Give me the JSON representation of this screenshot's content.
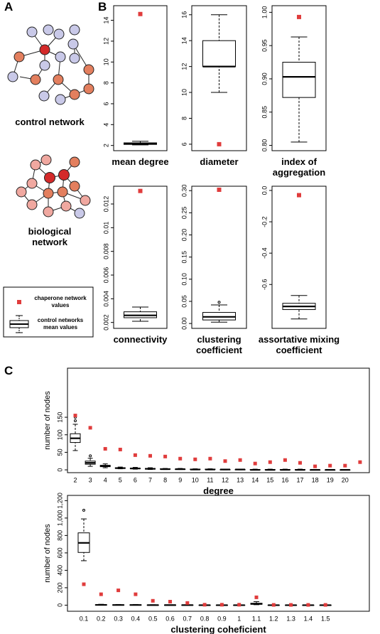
{
  "panel_labels": [
    "A",
    "B",
    "C"
  ],
  "network_labels": [
    "control network",
    "biological network"
  ],
  "legend": {
    "points": "chaperone network values",
    "boxes": "control networks mean values"
  },
  "chart_data": [
    {
      "type": "boxplot",
      "title": "mean degree",
      "ylim": [
        1.5,
        15.4
      ],
      "yticks": [
        2,
        4,
        6,
        8,
        10,
        12,
        14
      ],
      "min": [
        2.05
      ],
      "q1": [
        2.1
      ],
      "median": [
        2.15
      ],
      "q3": [
        2.25
      ],
      "max": [
        2.4
      ],
      "outliers": [
        []
      ],
      "points": [
        14.6
      ],
      "box_color": "#000000",
      "point_color": "#e03c3c"
    },
    {
      "type": "boxplot",
      "title": "diameter",
      "ylim": [
        5.5,
        16.7
      ],
      "yticks": [
        6,
        8,
        10,
        12,
        14,
        16
      ],
      "min": [
        10
      ],
      "q1": [
        12
      ],
      "median": [
        12
      ],
      "q3": [
        14
      ],
      "max": [
        16
      ],
      "outliers": [
        []
      ],
      "points": [
        6
      ],
      "box_color": "#000000",
      "point_color": "#e03c3c"
    },
    {
      "type": "boxplot",
      "title": "index of aggregation",
      "ylim": [
        0.792,
        1.01
      ],
      "yticks": [
        {
          "value": 0.8,
          "label": "0.80"
        },
        0.85,
        {
          "value": 0.9,
          "label": "0.90"
        },
        0.95,
        {
          "value": 1,
          "label": "1.00"
        }
      ],
      "min": [
        0.805
      ],
      "q1": [
        0.872
      ],
      "median": [
        0.903
      ],
      "q3": [
        0.925
      ],
      "max": [
        0.963
      ],
      "outliers": [
        []
      ],
      "points": [
        0.993
      ],
      "box_color": "#000000",
      "point_color": "#e03c3c"
    },
    {
      "type": "boxplot",
      "title": "connectivity",
      "ylim": [
        0.0015,
        0.0135
      ],
      "yticks": [
        0.002,
        0.004,
        0.006,
        0.008,
        0.01,
        0.012
      ],
      "min": [
        0.0021
      ],
      "q1": [
        0.0024
      ],
      "median": [
        0.0026
      ],
      "q3": [
        0.0029
      ],
      "max": [
        0.0033
      ],
      "outliers": [
        []
      ],
      "points": [
        0.0131
      ],
      "box_color": "#000000",
      "point_color": "#e03c3c"
    },
    {
      "type": "boxplot",
      "title": "clustering coefficient",
      "ylim": [
        -0.011,
        0.31
      ],
      "yticks": [
        {
          "value": 0,
          "label": "0.00"
        },
        0.05,
        {
          "value": 0.1,
          "label": "0.10"
        },
        0.15,
        {
          "value": 0.2,
          "label": "0.20"
        },
        0.25,
        {
          "value": 0.3,
          "label": "0.30"
        }
      ],
      "min": [
        0.003
      ],
      "q1": [
        0.008
      ],
      "median": [
        0.015
      ],
      "q3": [
        0.025
      ],
      "max": [
        0.042
      ],
      "outliers": [
        [
          0.048
        ]
      ],
      "points": [
        0.302
      ],
      "box_color": "#000000",
      "point_color": "#e03c3c"
    },
    {
      "type": "boxplot",
      "title": "assortative mixing coefficient",
      "ylim": [
        -0.88,
        0.027
      ],
      "yticks": [
        {
          "value": 0,
          "label": "0.0"
        },
        -0.2,
        -0.4,
        -0.6
      ],
      "min": [
        -0.82
      ],
      "q1": [
        -0.76
      ],
      "median": [
        -0.74
      ],
      "q3": [
        -0.72
      ],
      "max": [
        -0.67
      ],
      "outliers": [
        []
      ],
      "points": [
        -0.03
      ],
      "box_color": "#000000",
      "point_color": "#e03c3c"
    },
    {
      "type": "boxplot",
      "xlabel": "degree",
      "ylabel": "number of nodes",
      "ylim": [
        -8,
        290
      ],
      "yticks": [
        0,
        50,
        100,
        150
      ],
      "categories": [
        "2",
        "3",
        "4",
        "5",
        "6",
        "7",
        "8",
        "9",
        "10",
        "11",
        "12",
        "13",
        "14",
        "15",
        "16",
        "17",
        "18",
        "19",
        "20",
        null
      ],
      "min": [
        55,
        10,
        6,
        3,
        2,
        1,
        1,
        1,
        0,
        0,
        0,
        0,
        0,
        0,
        0,
        0,
        0,
        0,
        0,
        null
      ],
      "q1": [
        78,
        16,
        9,
        4,
        3,
        2,
        2,
        1,
        1,
        1,
        0,
        0,
        0,
        0,
        0,
        0,
        0,
        0,
        0,
        null
      ],
      "median": [
        90,
        20,
        11,
        5,
        4,
        3,
        2,
        2,
        1,
        1,
        1,
        1,
        0,
        0,
        0,
        0,
        0,
        0,
        0,
        null
      ],
      "q3": [
        103,
        25,
        13,
        6,
        5,
        4,
        3,
        2,
        2,
        2,
        1,
        1,
        1,
        1,
        1,
        1,
        0,
        0,
        0,
        null
      ],
      "max": [
        130,
        33,
        17,
        8,
        7,
        6,
        4,
        4,
        3,
        3,
        2,
        2,
        2,
        2,
        2,
        2,
        1,
        1,
        1,
        null
      ],
      "outliers": [
        [
          140,
          150
        ],
        [
          40
        ],
        [],
        [],
        [],
        [],
        [],
        [],
        [],
        [],
        [],
        [],
        [],
        [],
        [],
        [],
        [],
        [],
        [],
        []
      ],
      "points": [
        155,
        120,
        60,
        58,
        42,
        40,
        38,
        32,
        30,
        32,
        25,
        28,
        18,
        22,
        28,
        20,
        10,
        12,
        12,
        22
      ],
      "box_color": "#000000",
      "point_color": "#e03c3c"
    },
    {
      "type": "boxplot",
      "xlabel": "clustering coheficient",
      "ylabel": "number of nodes",
      "ylim": [
        -70,
        1260
      ],
      "yticks": [
        0,
        200,
        400,
        600,
        800,
        {
          "value": 1000,
          "label": "1,000"
        },
        {
          "value": 1200,
          "label": "1,200"
        }
      ],
      "categories": [
        "0.1",
        "0.2",
        "0.3",
        "0.4",
        "0.5",
        "0.6",
        "0.7",
        "0.8",
        "0.9",
        "1",
        "1.1",
        "1.2",
        "1.3",
        "1.4",
        "1.5"
      ],
      "min": [
        510,
        0,
        0,
        0,
        0,
        0,
        0,
        0,
        0,
        0,
        5,
        0,
        0,
        0,
        0
      ],
      "q1": [
        605,
        1,
        1,
        1,
        0,
        0,
        0,
        0,
        0,
        0,
        10,
        0,
        0,
        0,
        0
      ],
      "median": [
        715,
        3,
        2,
        2,
        1,
        1,
        1,
        0,
        0,
        0,
        15,
        0,
        0,
        0,
        0
      ],
      "q3": [
        830,
        5,
        4,
        4,
        2,
        2,
        2,
        1,
        1,
        1,
        22,
        1,
        1,
        1,
        1
      ],
      "max": [
        990,
        10,
        8,
        8,
        5,
        4,
        4,
        3,
        2,
        2,
        40,
        2,
        2,
        2,
        2
      ],
      "outliers": [
        [
          1090
        ],
        [],
        [],
        [],
        [],
        [],
        [],
        [],
        [],
        [],
        [],
        [],
        [],
        [],
        []
      ],
      "points": [
        240,
        125,
        170,
        125,
        50,
        40,
        25,
        5,
        5,
        5,
        90,
        3,
        3,
        3,
        3
      ],
      "box_color": "#000000",
      "point_color": "#e03c3c"
    }
  ]
}
